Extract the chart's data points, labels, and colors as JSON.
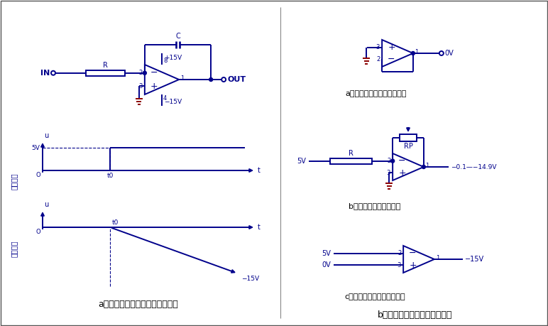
{
  "bg_color": "#ffffff",
  "circuit_color": "#00008B",
  "ground_color": "#8B0000",
  "title_left": "a、积分电路的构成及信号波形图",
  "title_right": "b、积分电路工作过程中的变身",
  "label_a1": "a、变身电路一：电压跟随器",
  "label_b1": "b、变身电路二：放大器",
  "label_c1": "c、变身电路三：电压比较器",
  "label_in": "输入信号",
  "label_out_sig": "输出信号",
  "outer_border": true
}
